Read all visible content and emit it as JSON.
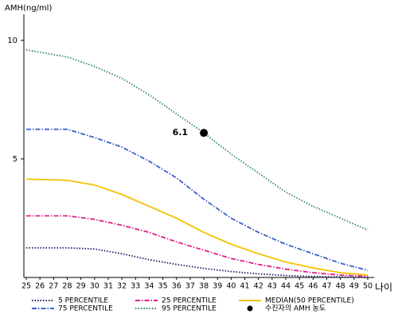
{
  "chart_data": {
    "type": "line",
    "y_label": "AMH(ng/ml)",
    "x_label": "나이",
    "x": [
      25,
      28,
      30,
      32,
      34,
      36,
      38,
      40,
      42,
      44,
      46,
      48,
      50
    ],
    "xlim": [
      25,
      50
    ],
    "xticks": [
      25,
      26,
      27,
      28,
      29,
      30,
      31,
      32,
      33,
      34,
      35,
      36,
      37,
      38,
      39,
      40,
      41,
      42,
      43,
      44,
      45,
      46,
      47,
      48,
      49,
      50
    ],
    "ylim": [
      0,
      11.1
    ],
    "yticks": [
      5,
      10
    ],
    "grid": false,
    "series": [
      {
        "name": "5 PERCENTILE",
        "color": "#1a1a6e",
        "dash": "1.5 2",
        "values": [
          1.25,
          1.25,
          1.2,
          1.0,
          0.75,
          0.55,
          0.38,
          0.25,
          0.15,
          0.08,
          0.04,
          0.02,
          0.0
        ]
      },
      {
        "name": "25 PERCENTILE",
        "color": "#e0208a",
        "dash": "6 2 1.5 2",
        "values": [
          2.6,
          2.6,
          2.45,
          2.2,
          1.9,
          1.5,
          1.15,
          0.8,
          0.55,
          0.35,
          0.2,
          0.1,
          0.05
        ]
      },
      {
        "name": "MEDIAN(50 PERCENTILE)",
        "color": "#f2c200",
        "dash": "",
        "values": [
          4.15,
          4.1,
          3.9,
          3.5,
          3.0,
          2.5,
          1.9,
          1.4,
          1.0,
          0.65,
          0.4,
          0.2,
          0.1
        ]
      },
      {
        "name": "75 PERCENTILE",
        "color": "#3a5fc8",
        "dash": "6 2 1.5 2",
        "values": [
          6.25,
          6.25,
          5.9,
          5.5,
          4.9,
          4.2,
          3.3,
          2.5,
          1.9,
          1.4,
          1.0,
          0.6,
          0.3
        ]
      },
      {
        "name": "95 PERCENTILE",
        "color": "#2e8b57",
        "dash": "1.5 2",
        "values": [
          9.6,
          9.3,
          8.9,
          8.4,
          7.7,
          6.9,
          6.1,
          5.2,
          4.4,
          3.6,
          3.0,
          2.5,
          2.0
        ]
      }
    ],
    "point": {
      "name": "수진자의 AMH 농도",
      "color": "#000000",
      "x": 38,
      "y": 6.1
    }
  }
}
